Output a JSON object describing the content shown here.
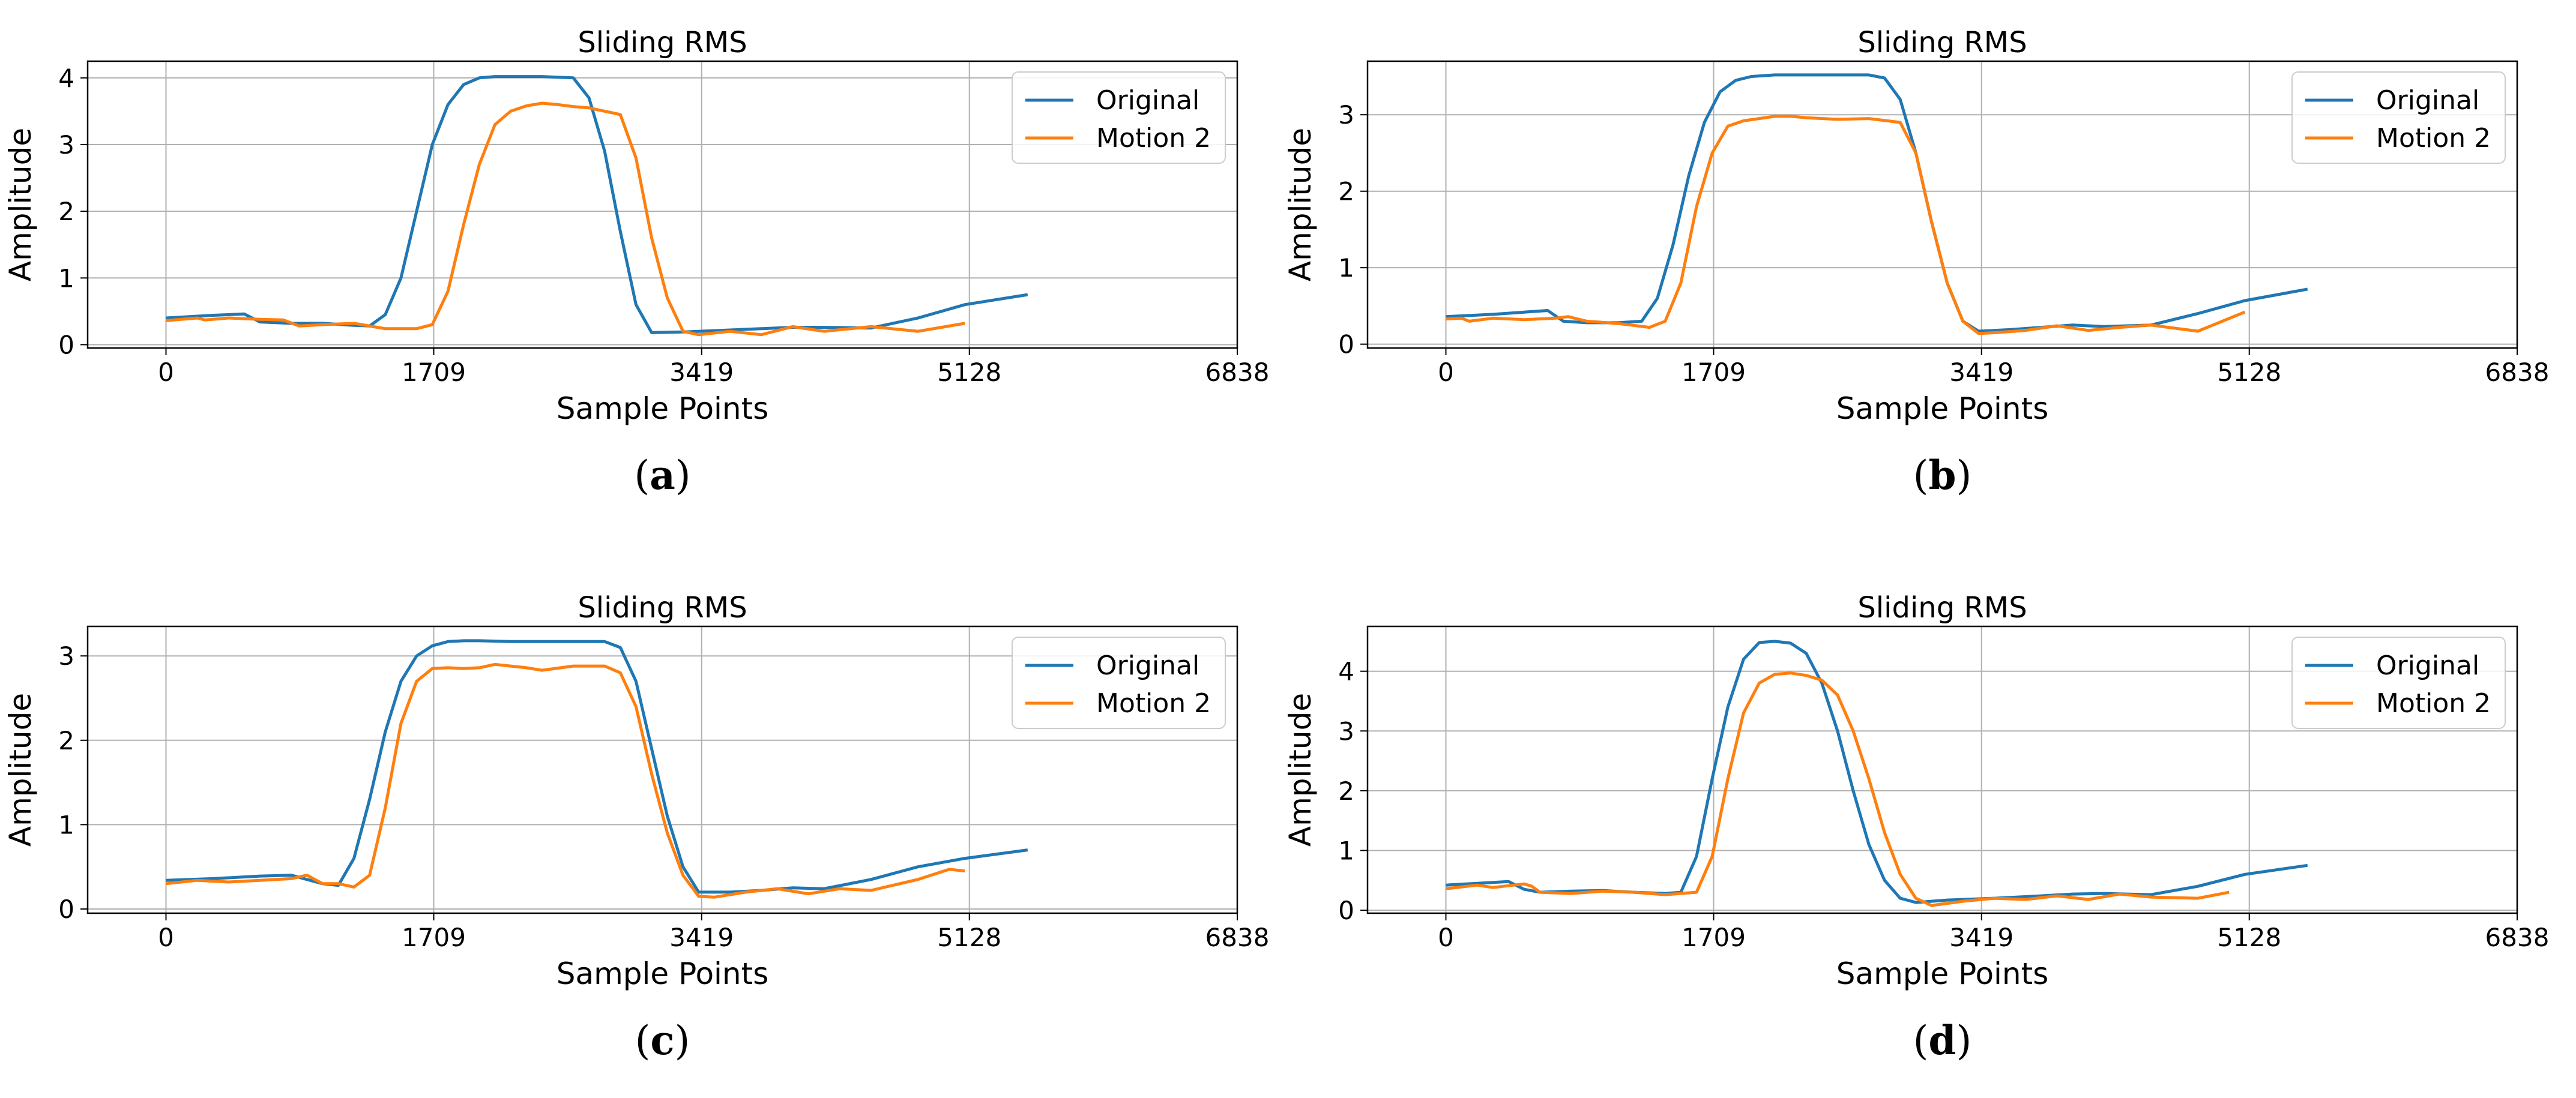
{
  "chart_data": [
    {
      "type": "line",
      "label": "(a)",
      "title": "Sliding RMS",
      "xlabel": "Sample Points",
      "ylabel": "Amplitude",
      "xlim": [
        -500,
        6838
      ],
      "ylim": [
        -0.05,
        4.25
      ],
      "xticks": [
        0,
        1709,
        3419,
        5128,
        6838
      ],
      "yticks": [
        0,
        1,
        2,
        3,
        4
      ],
      "grid": true,
      "legend": "top-right",
      "series": [
        {
          "name": "Original",
          "color": "#1f77b4",
          "x": [
            0,
            300,
            500,
            600,
            800,
            1000,
            1200,
            1300,
            1400,
            1500,
            1600,
            1700,
            1800,
            1900,
            2000,
            2100,
            2200,
            2400,
            2600,
            2700,
            2800,
            2900,
            3000,
            3100,
            3300,
            3500,
            3800,
            4000,
            4200,
            4500,
            4800,
            5100,
            5500
          ],
          "y": [
            0.4,
            0.44,
            0.46,
            0.34,
            0.32,
            0.32,
            0.29,
            0.28,
            0.45,
            1.0,
            2.0,
            3.0,
            3.6,
            3.9,
            4.0,
            4.02,
            4.02,
            4.02,
            4.0,
            3.7,
            2.9,
            1.7,
            0.6,
            0.18,
            0.19,
            0.21,
            0.24,
            0.26,
            0.26,
            0.25,
            0.4,
            0.6,
            0.75
          ]
        },
        {
          "name": "Motion 2",
          "color": "#ff7f0e",
          "x": [
            0,
            200,
            250,
            400,
            600,
            750,
            850,
            1000,
            1200,
            1400,
            1600,
            1700,
            1800,
            1900,
            2000,
            2100,
            2200,
            2300,
            2400,
            2500,
            2600,
            2700,
            2900,
            3000,
            3100,
            3200,
            3300,
            3400,
            3600,
            3800,
            4000,
            4200,
            4500,
            4800,
            5100
          ],
          "y": [
            0.36,
            0.4,
            0.37,
            0.4,
            0.38,
            0.37,
            0.28,
            0.3,
            0.32,
            0.24,
            0.24,
            0.3,
            0.8,
            1.8,
            2.7,
            3.3,
            3.5,
            3.58,
            3.62,
            3.6,
            3.57,
            3.55,
            3.45,
            2.8,
            1.6,
            0.7,
            0.2,
            0.15,
            0.2,
            0.15,
            0.27,
            0.2,
            0.27,
            0.2,
            0.32
          ]
        }
      ]
    },
    {
      "type": "line",
      "label": "(b)",
      "title": "Sliding RMS",
      "xlabel": "Sample Points",
      "ylabel": "Amplitude",
      "xlim": [
        -500,
        6838
      ],
      "ylim": [
        -0.05,
        3.7
      ],
      "xticks": [
        0,
        1709,
        3419,
        5128,
        6838
      ],
      "yticks": [
        0,
        1,
        2,
        3
      ],
      "grid": true,
      "legend": "top-right",
      "series": [
        {
          "name": "Original",
          "color": "#1f77b4",
          "x": [
            0,
            300,
            650,
            750,
            900,
            1100,
            1250,
            1350,
            1450,
            1550,
            1650,
            1750,
            1850,
            1950,
            2100,
            2300,
            2500,
            2700,
            2800,
            2900,
            3000,
            3100,
            3200,
            3300,
            3400,
            3600,
            3800,
            4000,
            4200,
            4500,
            4800,
            5100,
            5500
          ],
          "y": [
            0.36,
            0.39,
            0.44,
            0.3,
            0.28,
            0.28,
            0.3,
            0.6,
            1.3,
            2.2,
            2.9,
            3.3,
            3.45,
            3.5,
            3.52,
            3.52,
            3.52,
            3.52,
            3.48,
            3.2,
            2.5,
            1.6,
            0.8,
            0.3,
            0.17,
            0.19,
            0.22,
            0.25,
            0.23,
            0.25,
            0.4,
            0.57,
            0.72
          ]
        },
        {
          "name": "Motion 2",
          "color": "#ff7f0e",
          "x": [
            0,
            100,
            150,
            300,
            500,
            700,
            780,
            900,
            1100,
            1300,
            1400,
            1500,
            1600,
            1700,
            1800,
            1900,
            2000,
            2100,
            2200,
            2300,
            2500,
            2700,
            2900,
            3000,
            3100,
            3200,
            3300,
            3400,
            3500,
            3700,
            3900,
            4100,
            4300,
            4500,
            4800,
            5100
          ],
          "y": [
            0.33,
            0.34,
            0.3,
            0.34,
            0.32,
            0.34,
            0.36,
            0.3,
            0.27,
            0.22,
            0.3,
            0.8,
            1.8,
            2.5,
            2.85,
            2.92,
            2.95,
            2.98,
            2.98,
            2.96,
            2.94,
            2.95,
            2.9,
            2.5,
            1.6,
            0.8,
            0.3,
            0.14,
            0.15,
            0.18,
            0.24,
            0.18,
            0.22,
            0.25,
            0.17,
            0.42
          ]
        }
      ]
    },
    {
      "type": "line",
      "label": "(c)",
      "title": "Sliding RMS",
      "xlabel": "Sample Points",
      "ylabel": "Amplitude",
      "xlim": [
        -500,
        6838
      ],
      "ylim": [
        -0.05,
        3.35
      ],
      "xticks": [
        0,
        1709,
        3419,
        5128,
        6838
      ],
      "yticks": [
        0,
        1,
        2,
        3
      ],
      "grid": true,
      "legend": "top-right",
      "series": [
        {
          "name": "Original",
          "color": "#1f77b4",
          "x": [
            0,
            300,
            600,
            800,
            900,
            1000,
            1100,
            1200,
            1300,
            1400,
            1500,
            1600,
            1700,
            1800,
            1900,
            2000,
            2200,
            2500,
            2800,
            2900,
            3000,
            3100,
            3200,
            3300,
            3400,
            3600,
            3800,
            4000,
            4200,
            4500,
            4800,
            5100,
            5500
          ],
          "y": [
            0.34,
            0.36,
            0.39,
            0.4,
            0.35,
            0.3,
            0.28,
            0.6,
            1.3,
            2.1,
            2.7,
            3.0,
            3.12,
            3.17,
            3.18,
            3.18,
            3.17,
            3.17,
            3.17,
            3.1,
            2.7,
            1.9,
            1.1,
            0.5,
            0.2,
            0.2,
            0.22,
            0.25,
            0.24,
            0.35,
            0.5,
            0.6,
            0.7
          ]
        },
        {
          "name": "Motion 2",
          "color": "#ff7f0e",
          "x": [
            0,
            200,
            400,
            600,
            800,
            900,
            1000,
            1100,
            1200,
            1300,
            1400,
            1500,
            1600,
            1700,
            1800,
            1900,
            2000,
            2100,
            2200,
            2300,
            2400,
            2600,
            2800,
            2900,
            3000,
            3100,
            3200,
            3300,
            3400,
            3500,
            3700,
            3900,
            4100,
            4300,
            4500,
            4800,
            5000,
            5100
          ],
          "y": [
            0.3,
            0.34,
            0.32,
            0.34,
            0.36,
            0.4,
            0.3,
            0.3,
            0.26,
            0.4,
            1.2,
            2.2,
            2.7,
            2.85,
            2.86,
            2.85,
            2.86,
            2.9,
            2.88,
            2.86,
            2.83,
            2.88,
            2.88,
            2.8,
            2.4,
            1.6,
            0.9,
            0.4,
            0.15,
            0.14,
            0.2,
            0.24,
            0.18,
            0.24,
            0.22,
            0.35,
            0.47,
            0.45
          ]
        }
      ]
    },
    {
      "type": "line",
      "label": "(d)",
      "title": "Sliding RMS",
      "xlabel": "Sample Points",
      "ylabel": "Amplitude",
      "xlim": [
        -500,
        6838
      ],
      "ylim": [
        -0.05,
        4.75
      ],
      "xticks": [
        0,
        1709,
        3419,
        5128,
        6838
      ],
      "yticks": [
        0,
        1,
        2,
        3,
        4
      ],
      "grid": true,
      "legend": "top-right",
      "series": [
        {
          "name": "Original",
          "color": "#1f77b4",
          "x": [
            0,
            200,
            400,
            500,
            600,
            800,
            1000,
            1200,
            1400,
            1500,
            1600,
            1700,
            1800,
            1900,
            2000,
            2100,
            2200,
            2300,
            2400,
            2500,
            2600,
            2700,
            2800,
            2900,
            3000,
            3200,
            3500,
            3800,
            4000,
            4200,
            4500,
            4800,
            5100,
            5500
          ],
          "y": [
            0.42,
            0.45,
            0.48,
            0.35,
            0.3,
            0.32,
            0.33,
            0.3,
            0.28,
            0.3,
            0.9,
            2.2,
            3.4,
            4.2,
            4.48,
            4.5,
            4.47,
            4.3,
            3.8,
            3.0,
            2.0,
            1.1,
            0.5,
            0.2,
            0.13,
            0.17,
            0.2,
            0.24,
            0.27,
            0.28,
            0.26,
            0.4,
            0.6,
            0.75
          ]
        },
        {
          "name": "Motion 2",
          "color": "#ff7f0e",
          "x": [
            0,
            200,
            300,
            500,
            550,
            600,
            800,
            1000,
            1200,
            1400,
            1600,
            1700,
            1800,
            1900,
            2000,
            2100,
            2200,
            2300,
            2400,
            2500,
            2600,
            2700,
            2800,
            2900,
            3000,
            3100,
            3300,
            3500,
            3700,
            3900,
            4100,
            4300,
            4500,
            4800,
            5000
          ],
          "y": [
            0.36,
            0.42,
            0.38,
            0.44,
            0.4,
            0.3,
            0.28,
            0.32,
            0.3,
            0.26,
            0.3,
            0.9,
            2.2,
            3.3,
            3.8,
            3.95,
            3.97,
            3.93,
            3.85,
            3.6,
            3.0,
            2.2,
            1.3,
            0.6,
            0.2,
            0.08,
            0.15,
            0.2,
            0.18,
            0.24,
            0.18,
            0.27,
            0.22,
            0.2,
            0.3
          ]
        }
      ]
    }
  ]
}
